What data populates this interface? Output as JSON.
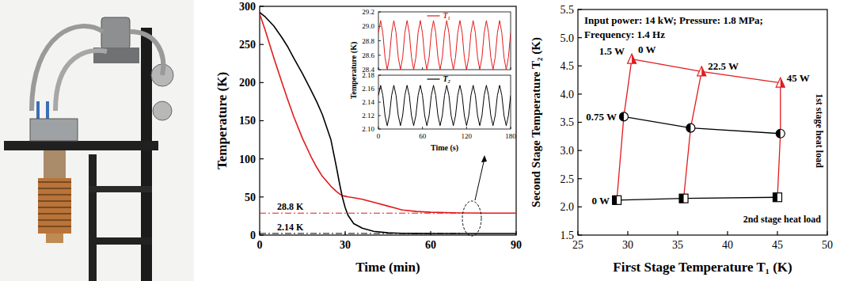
{
  "chart_data": [
    {
      "type": "line",
      "xlabel": "Time (min)",
      "ylabel": "Temperature (K)",
      "x": [
        0,
        2,
        5,
        8,
        10,
        12,
        15,
        18,
        20,
        22,
        25,
        27,
        28,
        29,
        30,
        31,
        33,
        36,
        40,
        45,
        48,
        50,
        55,
        60,
        70,
        80,
        90
      ],
      "series": [
        {
          "color": "#e31a1c",
          "values": [
            290,
            268,
            232,
            198,
            176,
            155,
            127,
            103,
            89,
            77,
            64,
            57,
            54,
            52,
            51,
            50,
            49,
            47,
            43,
            38,
            35,
            33,
            31,
            30,
            29,
            28.8,
            28.8
          ]
        },
        {
          "color": "#000000",
          "values": [
            292,
            286,
            274,
            258,
            246,
            232,
            212,
            190,
            175,
            158,
            125,
            88,
            68,
            50,
            36,
            26,
            15,
            9,
            5,
            3,
            2.6,
            2.4,
            2.2,
            2.15,
            2.14,
            2.14,
            2.14
          ]
        }
      ],
      "xlim": [
        0,
        90
      ],
      "ylim": [
        0,
        300
      ],
      "xticks": [
        0,
        30,
        60,
        90
      ],
      "yticks": [
        0,
        50,
        100,
        150,
        200,
        250,
        300
      ],
      "reference_lines": [
        {
          "value": 28.8,
          "label": "28.8 K",
          "color": "#e31a1c"
        },
        {
          "value": 2.14,
          "label": "2.14 K",
          "color": "#000000"
        }
      ]
    },
    {
      "type": "line",
      "ylabel": "Temperature (K)",
      "x": [
        0,
        3,
        6,
        9,
        12,
        15,
        18,
        21,
        24,
        27,
        30,
        33,
        36,
        39,
        42,
        45,
        48,
        51,
        54,
        57,
        60,
        63,
        66,
        69,
        72,
        75,
        78,
        81,
        84,
        87,
        90,
        93,
        96,
        99,
        102,
        105,
        108,
        111,
        114,
        117,
        120,
        123,
        126,
        129,
        132,
        135,
        138,
        141,
        144,
        147,
        150,
        153,
        156,
        159,
        162,
        165,
        168,
        171,
        174,
        177,
        180
      ],
      "series": [
        {
          "name": "T₁",
          "color": "#e31a1c",
          "values": [
            28.91,
            29.08,
            28.91,
            28.57,
            28.4,
            28.57,
            28.91,
            29.08,
            28.91,
            28.57,
            28.4,
            28.57,
            28.91,
            29.08,
            28.91,
            28.57,
            28.4,
            28.57,
            28.91,
            29.08,
            28.91,
            28.57,
            28.4,
            28.57,
            28.91,
            29.08,
            28.91,
            28.57,
            28.4,
            28.57,
            28.91,
            29.08,
            28.91,
            28.57,
            28.4,
            28.57,
            28.91,
            29.08,
            28.91,
            28.57,
            28.4,
            28.57,
            28.91,
            29.08,
            28.91,
            28.57,
            28.4,
            28.57,
            28.91,
            29.08,
            28.91,
            28.57,
            28.4,
            28.57,
            28.91,
            29.08,
            28.91,
            28.57,
            28.4,
            28.57,
            28.91
          ]
        }
      ],
      "xlim": [
        0,
        180
      ],
      "ylim": [
        28.4,
        29.2
      ],
      "xticks": [
        0,
        60,
        120,
        180
      ],
      "yticks": [
        28.4,
        28.6,
        28.8,
        {
          "value": 29,
          "label": "29.0"
        },
        29.2
      ],
      "legend": "upper center",
      "tick_labels": "y"
    },
    {
      "type": "line",
      "xlabel": "Time (s)",
      "x": [
        0,
        3,
        6,
        9,
        12,
        15,
        18,
        21,
        24,
        27,
        30,
        33,
        36,
        39,
        42,
        45,
        48,
        51,
        54,
        57,
        60,
        63,
        66,
        69,
        72,
        75,
        78,
        81,
        84,
        87,
        90,
        93,
        96,
        99,
        102,
        105,
        108,
        111,
        114,
        117,
        120,
        123,
        126,
        129,
        132,
        135,
        138,
        141,
        144,
        147,
        150,
        153,
        156,
        159,
        162,
        165,
        168,
        171,
        174,
        177,
        180
      ],
      "series": [
        {
          "name": "T₂",
          "color": "#000000",
          "values": [
            2.15,
            2.165,
            2.15,
            2.12,
            2.105,
            2.12,
            2.15,
            2.165,
            2.15,
            2.12,
            2.105,
            2.12,
            2.15,
            2.165,
            2.15,
            2.12,
            2.105,
            2.12,
            2.15,
            2.165,
            2.15,
            2.12,
            2.105,
            2.12,
            2.15,
            2.165,
            2.15,
            2.12,
            2.105,
            2.12,
            2.15,
            2.165,
            2.15,
            2.12,
            2.105,
            2.12,
            2.15,
            2.165,
            2.15,
            2.12,
            2.105,
            2.12,
            2.15,
            2.165,
            2.15,
            2.12,
            2.105,
            2.12,
            2.15,
            2.165,
            2.15,
            2.12,
            2.105,
            2.12,
            2.15,
            2.165,
            2.15,
            2.12,
            2.105,
            2.12,
            2.15
          ]
        }
      ],
      "xlim": [
        0,
        180
      ],
      "ylim": [
        2.1,
        2.18
      ],
      "xticks": [
        0,
        60,
        120,
        180
      ],
      "yticks": [
        {
          "value": 2.1,
          "label": "2.10"
        },
        2.12,
        2.14,
        2.16,
        2.18
      ],
      "legend": "upper center"
    },
    {
      "type": "scatter",
      "title": "Input power: 14 kW; Pressure: 1.8 MPa;",
      "subtitle": "Frequency: 1.4 Hz",
      "xlabel": "First Stage Temperature T₁ (K)",
      "ylabel": "Second Stage Temperature T₂ (K)",
      "xlim": [
        25,
        50
      ],
      "ylim": [
        1.5,
        5.5
      ],
      "xticks": [
        25,
        30,
        35,
        40,
        45,
        50
      ],
      "yticks": [
        1.5,
        {
          "value": 2,
          "label": "2.0"
        },
        2.5,
        {
          "value": 3,
          "label": "3.0"
        },
        3.5,
        {
          "value": 4,
          "label": "4.0"
        },
        4.5,
        {
          "value": 5,
          "label": "5.0"
        },
        5.5
      ],
      "series": [
        {
          "name": "0 W",
          "color": "#000000",
          "marker": "square",
          "x": [
            28.9,
            35.6,
            45.0
          ],
          "values": [
            2.12,
            2.15,
            2.17
          ]
        },
        {
          "name": "0.75 W",
          "color": "#000000",
          "marker": "circle",
          "x": [
            29.6,
            36.3,
            45.3
          ],
          "values": [
            3.6,
            3.4,
            3.3
          ]
        },
        {
          "name": "1.5 W",
          "color": "#e31a1c",
          "marker": "triangle",
          "x": [
            30.4,
            37.4,
            45.3
          ],
          "values": [
            4.62,
            4.4,
            4.2
          ]
        }
      ],
      "column_labels": [
        "0 W",
        "22.5 W",
        "45 W"
      ],
      "annotations": [
        "1st stage heat load",
        "2nd stage heat load"
      ]
    }
  ]
}
